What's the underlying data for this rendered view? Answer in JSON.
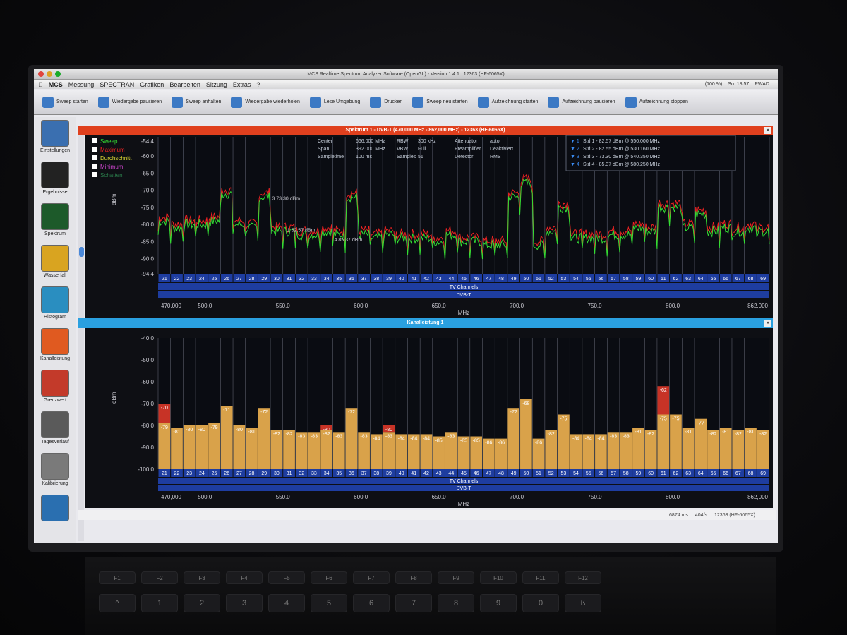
{
  "window": {
    "title": "MCS Realtime Spectrum Analyzer Software (OpenGL) - Version 1.4.1 : 12363 (HF-6065X)",
    "app_menu_name": "MCS"
  },
  "menu": {
    "items": [
      "Messung",
      "SPECTRAN",
      "Grafiken",
      "Bearbeiten",
      "Sitzung",
      "Extras",
      "?"
    ],
    "status_right": [
      "(100 %)",
      "So. 18:57",
      "PWAD"
    ]
  },
  "toolbar": {
    "buttons": [
      {
        "label": "Sweep starten",
        "icon": "play-icon"
      },
      {
        "label": "Wiedergabe pausieren",
        "icon": "pause-icon"
      },
      {
        "label": "Sweep anhalten",
        "icon": "stop-icon"
      },
      {
        "label": "Wiedergabe wiederholen",
        "icon": "repeat-icon"
      },
      {
        "label": "Lese Umgebung",
        "icon": "read-icon"
      },
      {
        "label": "Drucken",
        "icon": "printer-icon"
      },
      {
        "label": "Sweep neu starten",
        "icon": "restart-icon"
      },
      {
        "label": "Aufzeichnung starten",
        "icon": "record-start-icon"
      },
      {
        "label": "Aufzeichnung pausieren",
        "icon": "record-pause-icon"
      },
      {
        "label": "Aufzeichnung stoppen",
        "icon": "record-stop-icon"
      }
    ]
  },
  "sidebar": {
    "items": [
      {
        "label": "Einstellungen",
        "color": "#3a6fb0"
      },
      {
        "label": "Ergebnisse",
        "color": "#222222"
      },
      {
        "label": "Spektrum",
        "color": "#1d5a2a"
      },
      {
        "label": "Wasserfall",
        "color": "#d9a420"
      },
      {
        "label": "Histogram",
        "color": "#2a8ec0"
      },
      {
        "label": "Kanalleistung",
        "color": "#e05a20"
      },
      {
        "label": "Grenzwert",
        "color": "#c33a2a"
      },
      {
        "label": "Tagesverlauf",
        "color": "#5a5a5a"
      },
      {
        "label": "Kalibrierung",
        "color": "#7a7a7a"
      },
      {
        "label": "",
        "color": "#2a6fb0"
      }
    ]
  },
  "spectrum_panel": {
    "title": "Spektrum 1 - DVB-T (470,000 MHz - 862,000 MHz) - 12363 (HF-6065X)",
    "legend": [
      {
        "label": "Sweep",
        "color": "#33dd33"
      },
      {
        "label": "Maximum",
        "color": "#ee2222"
      },
      {
        "label": "Durchschnitt",
        "color": "#dddd33"
      },
      {
        "label": "Minimum",
        "color": "#cc44cc"
      },
      {
        "label": "Schatten",
        "color": "#2a7a4a"
      }
    ],
    "params": [
      [
        "Center",
        "666.000 MHz",
        "RBW",
        "300 kHz",
        "Attenuator",
        "auto"
      ],
      [
        "Span",
        "392.000 MHz",
        "VBW",
        "Full",
        "Preamplifier",
        "Deaktiviert"
      ],
      [
        "Sampletime",
        "100 ms",
        "Samples",
        "51",
        "Detector",
        "RMS"
      ]
    ],
    "markers": [
      {
        "num": "1",
        "text": "Std 1 - 82.57 dBm @ 550.000 MHz"
      },
      {
        "num": "2",
        "text": "Std 2 - 82.55 dBm @ 530.160 MHz"
      },
      {
        "num": "3",
        "text": "Std 3 - 73.30 dBm @ 540.350 MHz"
      },
      {
        "num": "4",
        "text": "Std 4 - 85.37 dBm @ 580.250 MHz"
      }
    ],
    "marker_labels": {
      "m3": "73.30 dBm",
      "m1": "82.57 dBm",
      "m4": "85.37 dBm"
    },
    "y_label": "dBm",
    "x_label": "MHz",
    "band_row1": "TV Channels",
    "band_row2": "DVB-T",
    "x_ticks": [
      "470,000",
      "500.0",
      "550.0",
      "600.0",
      "650.0",
      "700.0",
      "750.0",
      "800.0",
      "862,000"
    ],
    "y_ticks": [
      "-54.4",
      "-60.0",
      "-65.0",
      "-70.0",
      "-75.0",
      "-80.0",
      "-85.0",
      "-90.0",
      "-94.4"
    ]
  },
  "channel_panel": {
    "title": "Kanalleistung 1",
    "y_label": "dBm",
    "x_label": "MHz",
    "band_row1": "TV Channels",
    "band_row2": "DVB-T",
    "x_ticks": [
      "470,000",
      "500.0",
      "550.0",
      "600.0",
      "650.0",
      "700.0",
      "750.0",
      "800.0",
      "862,000"
    ],
    "y_ticks": [
      "-40.0",
      "-50.0",
      "-60.0",
      "-70.0",
      "-80.0",
      "-90.0",
      "-100.0"
    ]
  },
  "statusbar": {
    "timing": "6874 ms",
    "rate": "404/s",
    "device": "12363 (HF-6065X)"
  },
  "keyboard": {
    "fn_row": [
      "F1",
      "F2",
      "F3",
      "F4",
      "F5",
      "F6",
      "F7",
      "F8",
      "F9",
      "F10",
      "F11",
      "F12"
    ],
    "num_row": [
      "^",
      "1",
      "2",
      "3",
      "4",
      "5",
      "6",
      "7",
      "8",
      "9",
      "0",
      "ß"
    ]
  },
  "chart_data": {
    "type": "bar",
    "title": "Kanalleistung 1",
    "ylabel": "dBm",
    "xlabel": "MHz",
    "ylim": [
      -100,
      -40
    ],
    "x_range": [
      470,
      862
    ],
    "categories": [
      "21",
      "22",
      "23",
      "24",
      "25",
      "26",
      "27",
      "28",
      "29",
      "30",
      "31",
      "32",
      "33",
      "34",
      "35",
      "36",
      "37",
      "38",
      "39",
      "40",
      "41",
      "42",
      "43",
      "44",
      "45",
      "46",
      "47",
      "48",
      "49",
      "50",
      "51",
      "52",
      "53",
      "54",
      "55",
      "56",
      "57",
      "58",
      "59",
      "60",
      "61",
      "62",
      "63",
      "64",
      "65",
      "66",
      "67",
      "68",
      "69"
    ],
    "series": [
      {
        "name": "Durchschnitt",
        "color": "#d9a24a",
        "values": [
          -79,
          -81,
          -80,
          -80,
          -79,
          -71,
          -80,
          -81,
          -72,
          -82,
          -82,
          -83,
          -83,
          -82,
          -83,
          -72,
          -83,
          -84,
          -83,
          -84,
          -84,
          -84,
          -85,
          -83,
          -85,
          -85,
          -86,
          -86,
          -72,
          -68,
          -86,
          -82,
          -75,
          -84,
          -84,
          -84,
          -83,
          -83,
          -81,
          -82,
          -75,
          -75,
          -81,
          -77,
          -82,
          -81,
          -82,
          -81,
          -82
        ]
      },
      {
        "name": "Maximum",
        "color": "#c73326",
        "values": [
          -70,
          -81,
          -80,
          -80,
          -79,
          -71,
          -80,
          -81,
          -72,
          -82,
          -82,
          -83,
          -83,
          -80,
          -83,
          -72,
          -83,
          -84,
          -80,
          -84,
          -84,
          -84,
          -85,
          -83,
          -85,
          -85,
          -86,
          -86,
          -72,
          -68,
          -86,
          -82,
          -75,
          -84,
          -84,
          -84,
          -83,
          -83,
          -81,
          -82,
          -62,
          -75,
          -81,
          -77,
          -82,
          -81,
          -82,
          -81,
          -82
        ]
      }
    ]
  }
}
